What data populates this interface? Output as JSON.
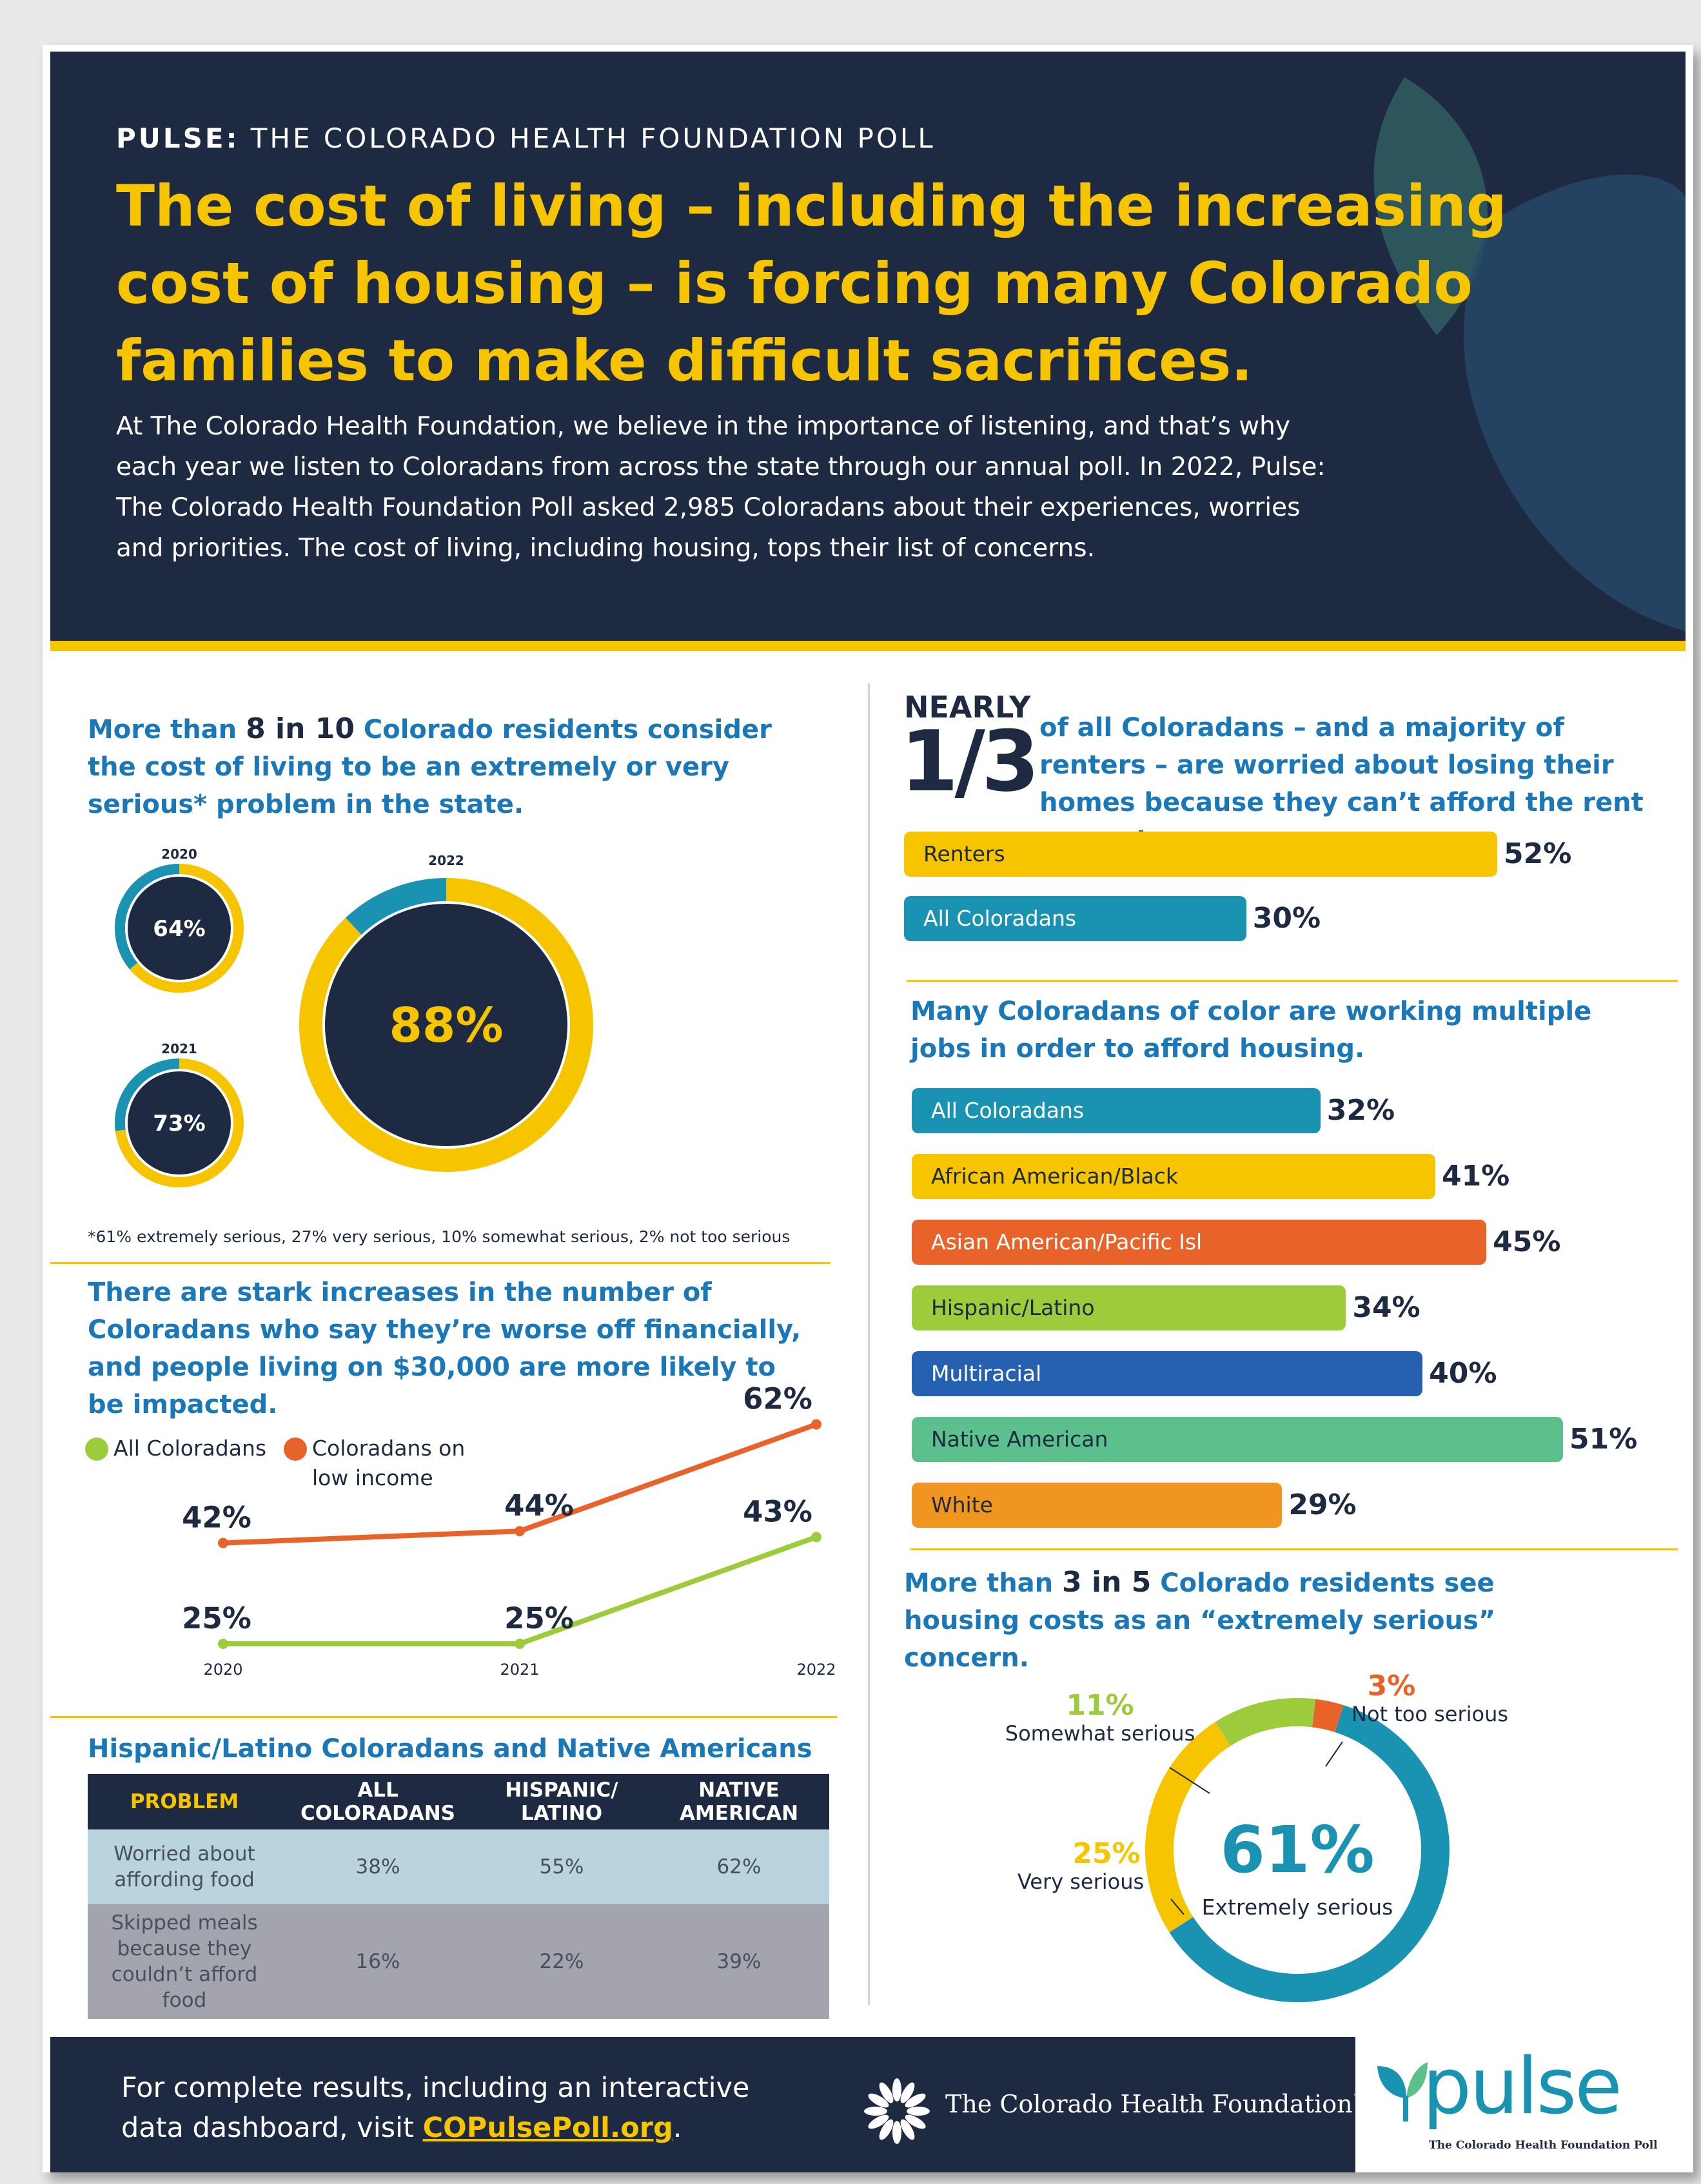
{
  "header": {
    "eyebrow_bold": "PULSE:",
    "eyebrow_rest": " THE COLORADO HEALTH FOUNDATION POLL",
    "headline": "The cost of living – including the increasing cost of housing – is forcing many Colorado families to make difficult sacrifices.",
    "intro": "At The Colorado Health Foundation, we believe in the importance of listening, and that’s why each year we listen to Coloradans from across the state through our annual poll. In 2022, Pulse: The Colorado Health Foundation Poll asked 2,985 Coloradans about their experiences, worries and priorities. The cost of living, including housing, tops their list of concerns."
  },
  "colors": {
    "navy": "#1e2a42",
    "gold": "#f6c500",
    "teal": "#1a93b2",
    "blue_title": "#1a78b8",
    "orange": "#e8632a",
    "green": "#9ccb3b"
  },
  "cost_of_living": {
    "title_pre": "More than ",
    "title_bold": "8 in 10",
    "title_post": " Colorado residents consider the cost of living to be an extremely or very serious* problem in the state.",
    "footnote": "*61% extremely serious, 27% very serious, 10% somewhat serious, 2% not too serious"
  },
  "worse_off": {
    "title": "There are stark increases in the number of Coloradans who say they’re worse off financially, and people living on $30,000 are more likely to be impacted.",
    "legend_all": "All Coloradans",
    "legend_low_line1": "Coloradans on",
    "legend_low_line2": "low income"
  },
  "food": {
    "title": "Hispanic/Latino Coloradans and Native Americans are struggling to afford food.",
    "headers": [
      "PROBLEM",
      "ALL COLORADANS",
      "HISPANIC/ LATINO",
      "NATIVE AMERICAN"
    ],
    "rows": [
      [
        "Worried about affording food",
        "38%",
        "55%",
        "62%"
      ],
      [
        "Skipped meals because they couldn’t afford food",
        "16%",
        "22%",
        "39%"
      ]
    ]
  },
  "nearly": {
    "word": "NEARLY",
    "fraction": "1/3",
    "text": "of all Coloradans – and a majority of renters – are worried about losing their homes because they can’t afford the rent or mortgage."
  },
  "multiple_jobs": {
    "title": "Many Coloradans of color are working multiple jobs in order to afford housing."
  },
  "housing": {
    "title_pre": "More than ",
    "title_bold": "3 in 5",
    "title_post": " Colorado residents see housing costs as an “extremely serious” concern.",
    "center_value": "61%",
    "center_label": "Extremely serious"
  },
  "footer": {
    "text_line1": "For complete results, including an interactive",
    "text_line2": "data dashboard, visit ",
    "link": "COPulsePoll.org",
    "period": ".",
    "foundation_name": "The Colorado Health Foundation",
    "tm": "™",
    "pulse_logo_word": "pulse",
    "pulse_logo_sub": "The Colorado Health Foundation Poll"
  },
  "chart_data": [
    {
      "type": "pie",
      "name": "serious_2020",
      "label": "2020",
      "values": [
        64,
        36
      ],
      "center_label": "64%"
    },
    {
      "type": "pie",
      "name": "serious_2021",
      "label": "2021",
      "values": [
        73,
        27
      ],
      "center_label": "73%"
    },
    {
      "type": "pie",
      "name": "serious_2022",
      "label": "2022",
      "values": [
        88,
        12
      ],
      "center_label": "88%"
    },
    {
      "type": "line",
      "name": "worse_off",
      "x": [
        "2020",
        "2021",
        "2022"
      ],
      "series": [
        {
          "name": "All Coloradans",
          "values": [
            25,
            25,
            43
          ],
          "labels": [
            "25%",
            "25%",
            "43%"
          ],
          "color": "#9ccb3b"
        },
        {
          "name": "Coloradans on low income",
          "values": [
            42,
            44,
            62
          ],
          "labels": [
            "42%",
            "44%",
            "62%"
          ],
          "color": "#e8632a"
        }
      ]
    },
    {
      "type": "bar",
      "name": "losing_homes",
      "categories": [
        "Renters",
        "All Coloradans"
      ],
      "values": [
        52,
        30
      ],
      "labels": [
        "52%",
        "30%"
      ],
      "colors": [
        "#f6c500",
        "#1a93b2"
      ]
    },
    {
      "type": "bar",
      "name": "multiple_jobs",
      "categories": [
        "All Coloradans",
        "African American/Black",
        "Asian American/Pacific Isl",
        "Hispanic/Latino",
        "Multiracial",
        "Native American",
        "White"
      ],
      "values": [
        32,
        41,
        45,
        34,
        40,
        51,
        29
      ],
      "labels": [
        "32%",
        "41%",
        "45%",
        "34%",
        "40%",
        "51%",
        "29%"
      ],
      "colors": [
        "#1a93b2",
        "#f6c500",
        "#e8632a",
        "#9ccb3b",
        "#2660b0",
        "#5cc08c",
        "#f0951f"
      ]
    },
    {
      "type": "pie",
      "name": "housing_concern",
      "categories": [
        "Extremely serious",
        "Very serious",
        "Somewhat serious",
        "Not too serious"
      ],
      "values": [
        61,
        25,
        11,
        3
      ],
      "labels": [
        "61%",
        "25%",
        "11%",
        "3%"
      ],
      "colors": [
        "#1a93b2",
        "#f6c500",
        "#9ccb3b",
        "#e8632a"
      ]
    }
  ]
}
